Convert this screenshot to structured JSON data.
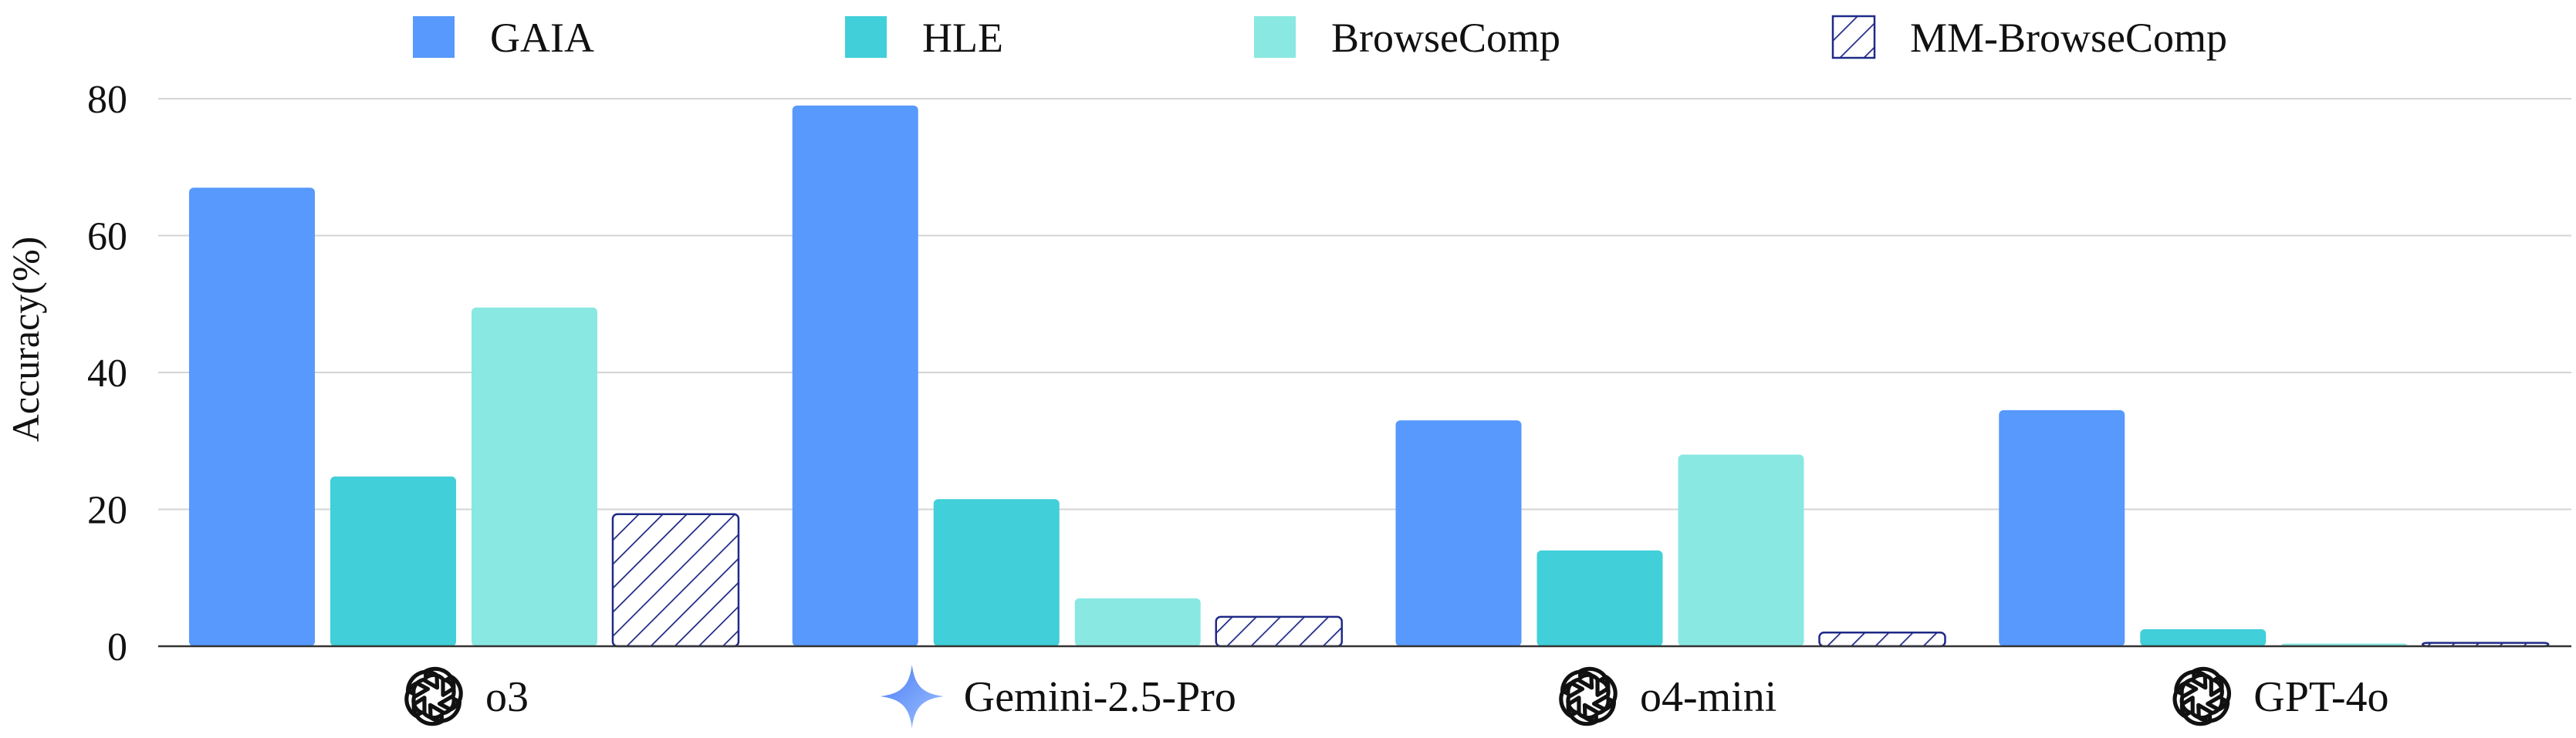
{
  "chart_data": {
    "type": "bar",
    "categories": [
      "o3",
      "Gemini-2.5-Pro",
      "o4-mini",
      "GPT-4o"
    ],
    "category_icons": [
      "openai-logo-icon",
      "gemini-logo-icon",
      "openai-logo-icon",
      "openai-logo-icon"
    ],
    "series": [
      {
        "name": "GAIA",
        "values": [
          67.0,
          79.0,
          33.0,
          34.5
        ],
        "color": "#5799fd",
        "pattern": "solid"
      },
      {
        "name": "HLE",
        "values": [
          24.8,
          21.5,
          14.0,
          2.5
        ],
        "color": "#41cfd9",
        "pattern": "solid"
      },
      {
        "name": "BrowseComp",
        "values": [
          49.5,
          7.0,
          28.0,
          0.4
        ],
        "color": "#8ae8e2",
        "pattern": "solid"
      },
      {
        "name": "MM-BrowseComp",
        "values": [
          19.3,
          4.3,
          2.0,
          0.5
        ],
        "color": "#1f2a88",
        "pattern": "hatched"
      }
    ],
    "title": "",
    "xlabel": "",
    "ylabel": "Accuracy(%)",
    "ylim": [
      0,
      80
    ],
    "yticks": [
      0,
      20,
      40,
      60,
      80
    ],
    "grid": true,
    "legend_position": "top"
  }
}
